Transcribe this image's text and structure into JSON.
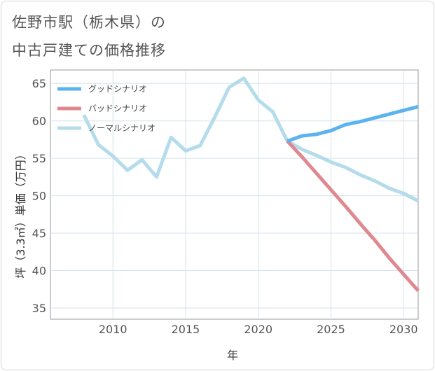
{
  "title_line1": "佐野市駅（栃木県）の",
  "title_line2": "中古戸建ての価格推移",
  "chart_data": {
    "type": "line",
    "xlabel": "年",
    "ylabel": "坪（3.3㎡）単価（万円）",
    "xlim": [
      2005.7,
      2031
    ],
    "ylim": [
      33.5,
      66.8
    ],
    "xticks": [
      2010,
      2015,
      2020,
      2025,
      2030
    ],
    "yticks": [
      35,
      40,
      45,
      50,
      55,
      60,
      65
    ],
    "grid": true,
    "legend_position": "top-left",
    "series": [
      {
        "name": "グッドシナリオ",
        "color": "#5cb3f0",
        "x": [
          2022,
          2023,
          2024,
          2025,
          2026,
          2027,
          2028,
          2029,
          2030,
          2031
        ],
        "y": [
          57.3,
          58.0,
          58.2,
          58.7,
          59.5,
          59.9,
          60.4,
          60.9,
          61.4,
          61.9
        ]
      },
      {
        "name": "バッドシナリオ",
        "color": "#e0888f",
        "x": [
          2022,
          2023,
          2024,
          2025,
          2026,
          2027,
          2028,
          2029,
          2030,
          2031
        ],
        "y": [
          57.3,
          55.2,
          53.0,
          50.8,
          48.6,
          46.3,
          44.1,
          41.7,
          39.5,
          37.3
        ]
      },
      {
        "name": "ノーマルシナリオ",
        "color": "#b5dcea",
        "x": [
          2008,
          2009,
          2010,
          2011,
          2012,
          2013,
          2014,
          2015,
          2016,
          2017,
          2018,
          2019,
          2020,
          2021,
          2022,
          2023,
          2024,
          2025,
          2026,
          2027,
          2028,
          2029,
          2030,
          2031
        ],
        "y": [
          60.8,
          56.8,
          55.3,
          53.4,
          54.8,
          52.5,
          57.8,
          56.0,
          56.7,
          60.5,
          64.5,
          65.7,
          62.8,
          61.2,
          57.3,
          56.2,
          55.4,
          54.5,
          53.8,
          52.8,
          52.0,
          51.0,
          50.3,
          49.3
        ]
      }
    ]
  }
}
